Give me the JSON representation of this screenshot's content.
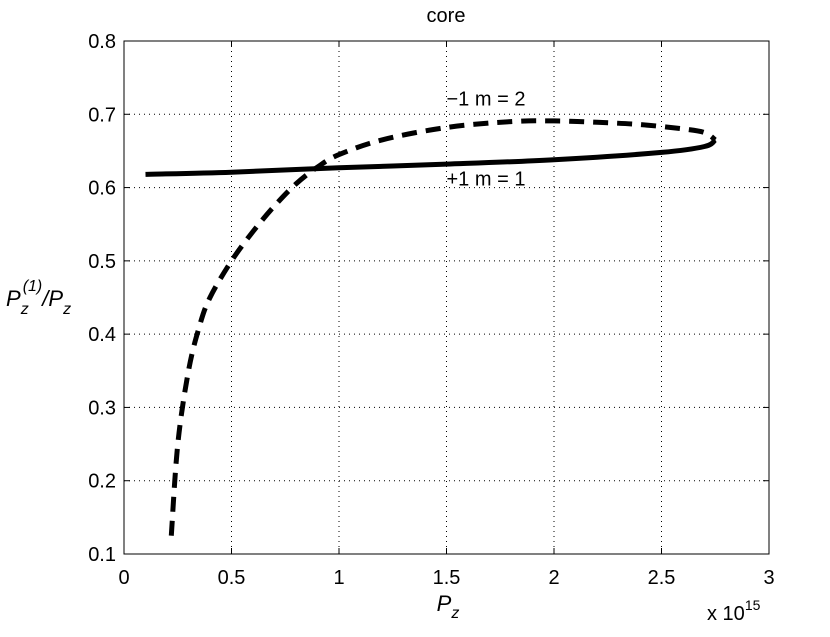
{
  "chart_data": {
    "type": "line",
    "title": "core",
    "xlabel": {
      "main": "P",
      "sub": "z"
    },
    "ylabel": {
      "num_main": "P",
      "num_sub": "z",
      "num_sup": "(1)",
      "slash": "/",
      "den_main": "P",
      "den_sub": "z"
    },
    "x_multiplier": {
      "base": "x 10",
      "exp": "15"
    },
    "xlim": [
      0,
      3
    ],
    "ylim": [
      0.1,
      0.8
    ],
    "x_ticks": [
      0,
      0.5,
      1,
      1.5,
      2,
      2.5,
      3
    ],
    "x_tick_labels": [
      "0",
      "0.5",
      "1",
      "1.5",
      "2",
      "2.5",
      "3"
    ],
    "y_ticks": [
      0.1,
      0.2,
      0.3,
      0.4,
      0.5,
      0.6,
      0.7,
      0.8
    ],
    "y_tick_labels": [
      "0.1",
      "0.2",
      "0.3",
      "0.4",
      "0.5",
      "0.6",
      "0.7",
      "0.8"
    ],
    "grid": true,
    "series": [
      {
        "style": "solid",
        "color": "#000000",
        "x": [
          0.1,
          0.5,
          1.0,
          1.5,
          2.0,
          2.5,
          2.7,
          2.75
        ],
        "y": [
          0.618,
          0.621,
          0.627,
          0.632,
          0.638,
          0.648,
          0.656,
          0.665
        ]
      },
      {
        "style": "dashed",
        "color": "#000000",
        "x": [
          0.22,
          0.25,
          0.3,
          0.35,
          0.4,
          0.5,
          0.6,
          0.7,
          0.8,
          0.9,
          1.0,
          1.2,
          1.5,
          1.8,
          2.0,
          2.2,
          2.4,
          2.6,
          2.7,
          2.75
        ],
        "y": [
          0.125,
          0.25,
          0.35,
          0.41,
          0.45,
          0.5,
          0.54,
          0.575,
          0.605,
          0.628,
          0.645,
          0.665,
          0.682,
          0.69,
          0.691,
          0.689,
          0.686,
          0.68,
          0.675,
          0.665
        ]
      }
    ],
    "annotations": [
      {
        "text": "−1  m = 2",
        "x": 1.5,
        "y": 0.712
      },
      {
        "text": "+1  m = 1",
        "x": 1.5,
        "y": 0.603
      }
    ]
  }
}
